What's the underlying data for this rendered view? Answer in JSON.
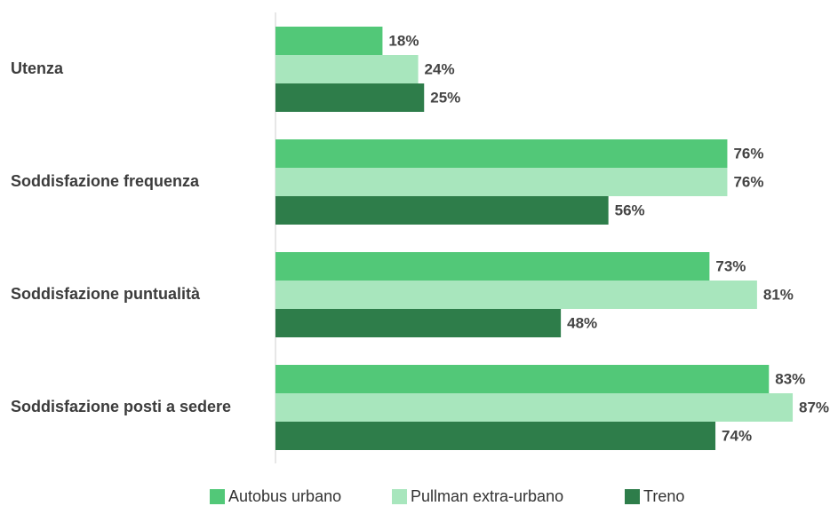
{
  "chart_data": {
    "type": "bar",
    "orientation": "horizontal",
    "categories": [
      "Utenza",
      "Soddisfazione frequenza",
      "Soddisfazione puntualità",
      "Soddisfazione posti a sedere"
    ],
    "series": [
      {
        "name": "Autobus urbano",
        "color": "#52c878",
        "values": [
          18,
          76,
          73,
          83
        ],
        "value_labels": [
          "18%",
          "76%",
          "73%",
          "83%"
        ]
      },
      {
        "name": "Pullman extra-urbano",
        "color": "#a8e6bd",
        "values": [
          24,
          76,
          81,
          87
        ],
        "value_labels": [
          "24%",
          "76%",
          "81%",
          "87%"
        ]
      },
      {
        "name": "Treno",
        "color": "#2e7d4a",
        "values": [
          25,
          56,
          48,
          74
        ],
        "value_labels": [
          "25%",
          "56%",
          "48%",
          "74%"
        ]
      }
    ],
    "xlim": [
      0,
      100
    ],
    "legend": "bottom"
  }
}
